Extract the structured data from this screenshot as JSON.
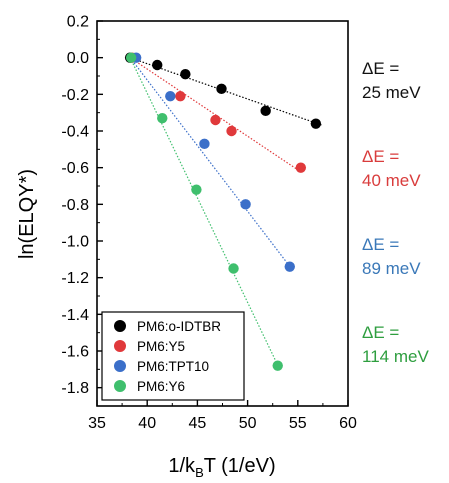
{
  "chart_data": {
    "type": "scatter",
    "xlabel": "1/k",
    "xlabel_sub": "B",
    "xlabel_rest": "T (1/eV)",
    "ylabel": "ln(ELQY*)",
    "xlim": [
      35,
      60
    ],
    "ylim": [
      -1.9,
      0.2
    ],
    "xticks": [
      "35",
      "40",
      "45",
      "50",
      "55",
      "60"
    ],
    "yticks": [
      "0.2",
      "0.0",
      "-0.2",
      "-0.4",
      "-0.6",
      "-0.8",
      "-1.0",
      "-1.2",
      "-1.4",
      "-1.6",
      "-1.8"
    ],
    "grid": false,
    "legend_position": "bottom-left",
    "series": [
      {
        "name": "PM6:o-IDTBR",
        "color": "#000000",
        "points": [
          [
            38.3,
            0.0
          ],
          [
            41.0,
            -0.04
          ],
          [
            43.8,
            -0.09
          ],
          [
            47.4,
            -0.17
          ],
          [
            51.8,
            -0.29
          ],
          [
            56.8,
            -0.36
          ]
        ],
        "fit": [
          [
            38.3,
            0.0
          ],
          [
            57.5,
            -0.37
          ]
        ],
        "annotation": [
          "ΔE =",
          "25 meV"
        ]
      },
      {
        "name": "PM6:Y5",
        "color": "#e0393b",
        "points": [
          [
            38.5,
            0.0
          ],
          [
            43.3,
            -0.21
          ],
          [
            46.8,
            -0.34
          ],
          [
            48.4,
            -0.4
          ],
          [
            55.3,
            -0.6
          ]
        ],
        "fit": [
          [
            38.3,
            0.0
          ],
          [
            55.5,
            -0.63
          ]
        ],
        "annotation": [
          "ΔE =",
          "40 meV"
        ]
      },
      {
        "name": "PM6:TPT10",
        "color": "#3b6fc9",
        "points": [
          [
            38.9,
            0.0
          ],
          [
            42.3,
            -0.21
          ],
          [
            45.7,
            -0.47
          ],
          [
            49.8,
            -0.8
          ],
          [
            54.2,
            -1.14
          ]
        ],
        "fit": [
          [
            38.3,
            0.0
          ],
          [
            54.5,
            -1.16
          ]
        ],
        "annotation": [
          "ΔE =",
          "89 meV"
        ]
      },
      {
        "name": "PM6:Y6",
        "color": "#3fbf6d",
        "points": [
          [
            38.4,
            0.0
          ],
          [
            41.5,
            -0.33
          ],
          [
            44.9,
            -0.72
          ],
          [
            48.6,
            -1.15
          ],
          [
            53.0,
            -1.68
          ]
        ],
        "fit": [
          [
            38.3,
            0.0
          ],
          [
            53.2,
            -1.7
          ]
        ],
        "annotation": [
          "ΔE =",
          "114 meV"
        ]
      }
    ]
  },
  "colors": {
    "annotation_black": "#111111",
    "annotation_red": "#d93c3c",
    "annotation_blue": "#3a78b8",
    "annotation_green": "#2e9e3f"
  }
}
